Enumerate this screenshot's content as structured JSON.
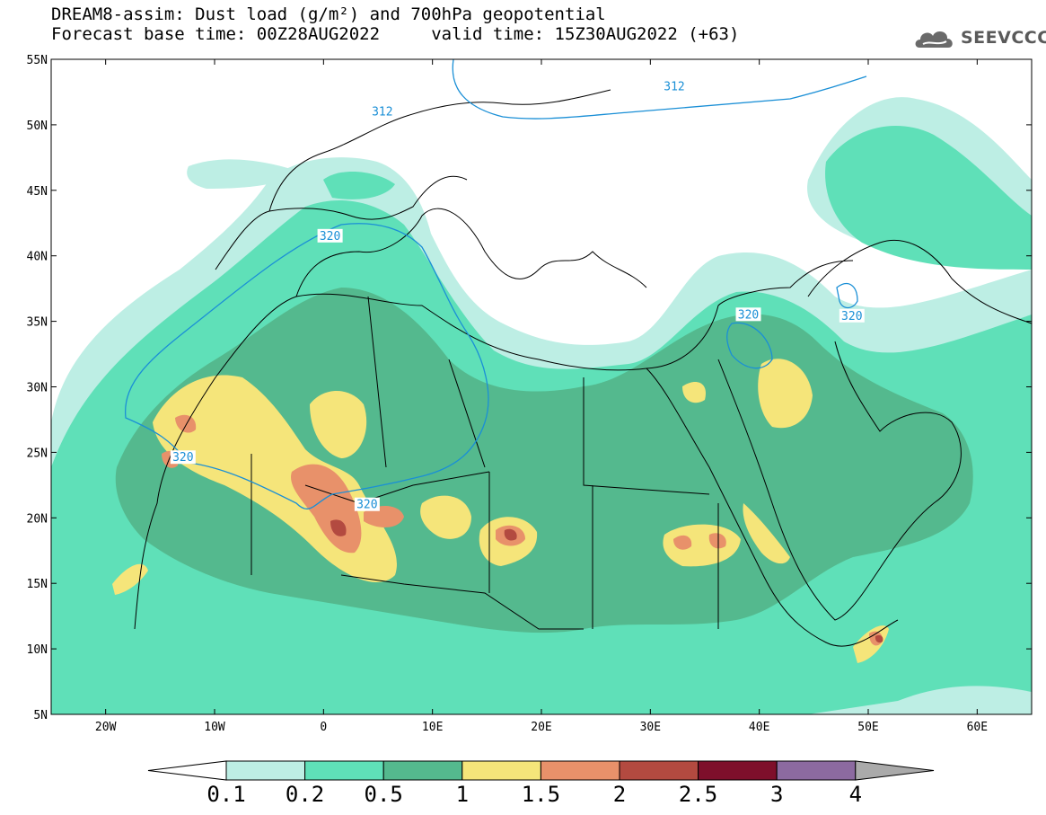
{
  "title": {
    "line1": "DREAM8-assim: Dust load (g/m²) and 700hPa geopotential",
    "line2": "Forecast base time: 00Z28AUG2022     valid time: 15Z30AUG2022 (+63)"
  },
  "logo": {
    "text": "SEEVCCC",
    "icon": "cloud-logo-icon"
  },
  "map": {
    "lon_range": [
      -25,
      65
    ],
    "lat_range": [
      5,
      55
    ],
    "lat_ticks": [
      {
        "value": 55,
        "label": "55N"
      },
      {
        "value": 50,
        "label": "50N"
      },
      {
        "value": 45,
        "label": "45N"
      },
      {
        "value": 40,
        "label": "40N"
      },
      {
        "value": 35,
        "label": "35N"
      },
      {
        "value": 30,
        "label": "30N"
      },
      {
        "value": 25,
        "label": "25N"
      },
      {
        "value": 20,
        "label": "20N"
      },
      {
        "value": 15,
        "label": "15N"
      },
      {
        "value": 10,
        "label": "10N"
      },
      {
        "value": 5,
        "label": "5N"
      }
    ],
    "lon_ticks": [
      {
        "value": -20,
        "label": "20W"
      },
      {
        "value": -10,
        "label": "10W"
      },
      {
        "value": 0,
        "label": "0"
      },
      {
        "value": 10,
        "label": "10E"
      },
      {
        "value": 20,
        "label": "20E"
      },
      {
        "value": 30,
        "label": "30E"
      },
      {
        "value": 40,
        "label": "40E"
      },
      {
        "value": 50,
        "label": "50E"
      },
      {
        "value": 60,
        "label": "60E"
      }
    ],
    "contour_labels": [
      {
        "text": "312",
        "lon": 5.4,
        "lat": 51.0
      },
      {
        "text": "312",
        "lon": 32.2,
        "lat": 52.9
      },
      {
        "text": "320",
        "lon": 0.6,
        "lat": 41.5
      },
      {
        "text": "320",
        "lon": 48.5,
        "lat": 35.4
      },
      {
        "text": "320",
        "lon": 39.0,
        "lat": 35.5
      },
      {
        "text": "320",
        "lon": -12.9,
        "lat": 24.6
      },
      {
        "text": "320",
        "lon": 4.0,
        "lat": 21.0
      }
    ]
  },
  "colorbar": {
    "colors": [
      "#bdeee4",
      "#5fe0b8",
      "#54b98e",
      "#f5e57a",
      "#e8916a",
      "#b34a40",
      "#7e0f2b",
      "#8c6aa0"
    ],
    "under_color": "#ffffff",
    "over_color": "#aaaaaa",
    "labels": [
      "0.1",
      "0.2",
      "0.5",
      "1",
      "1.5",
      "2",
      "2.5",
      "3",
      "4"
    ]
  }
}
